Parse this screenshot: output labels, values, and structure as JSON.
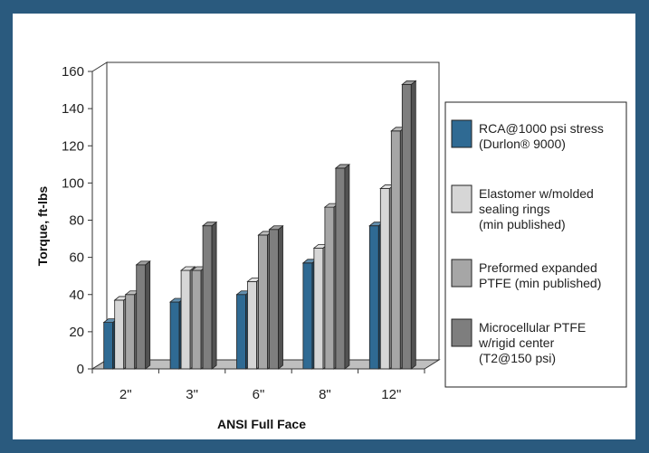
{
  "page": {
    "background": "#2a5a7e",
    "panel_background": "#ffffff"
  },
  "chart_data": {
    "type": "bar",
    "style": "3d-clustered-column",
    "title": "",
    "xlabel": "ANSI Full Face",
    "ylabel": "Torque, ft-lbs",
    "categories": [
      "2\"",
      "3\"",
      "6\"",
      "8\"",
      "12\""
    ],
    "ylim": [
      0,
      160
    ],
    "yticks": [
      0,
      20,
      40,
      60,
      80,
      100,
      120,
      140,
      160
    ],
    "grid": false,
    "legend_position": "right",
    "series": [
      {
        "name": "RCA@1000 psi stress (Durlon® 9000)",
        "legend_lines": [
          "RCA@1000 psi stress",
          "(Durlon® 9000)"
        ],
        "color": "#2f6a93",
        "values": [
          25,
          36,
          40,
          57,
          77
        ]
      },
      {
        "name": "Elastomer w/molded sealing rings (min published)",
        "legend_lines": [
          "Elastomer w/molded",
          "sealing rings",
          "(min published)"
        ],
        "color": "#d6d6d6",
        "values": [
          37,
          53,
          47,
          65,
          97
        ]
      },
      {
        "name": "Preformed expanded PTFE (min published)",
        "legend_lines": [
          "Preformed expanded",
          "PTFE (min published)"
        ],
        "color": "#a6a6a6",
        "values": [
          40,
          53,
          72,
          87,
          128
        ]
      },
      {
        "name": "Microcellular PTFE w/rigid center (T2@150 psi)",
        "legend_lines": [
          "Microcellular PTFE",
          "w/rigid center",
          "(T2@150 psi)"
        ],
        "color": "#7e7e7e",
        "values": [
          56,
          77,
          75,
          108,
          153
        ]
      }
    ]
  }
}
